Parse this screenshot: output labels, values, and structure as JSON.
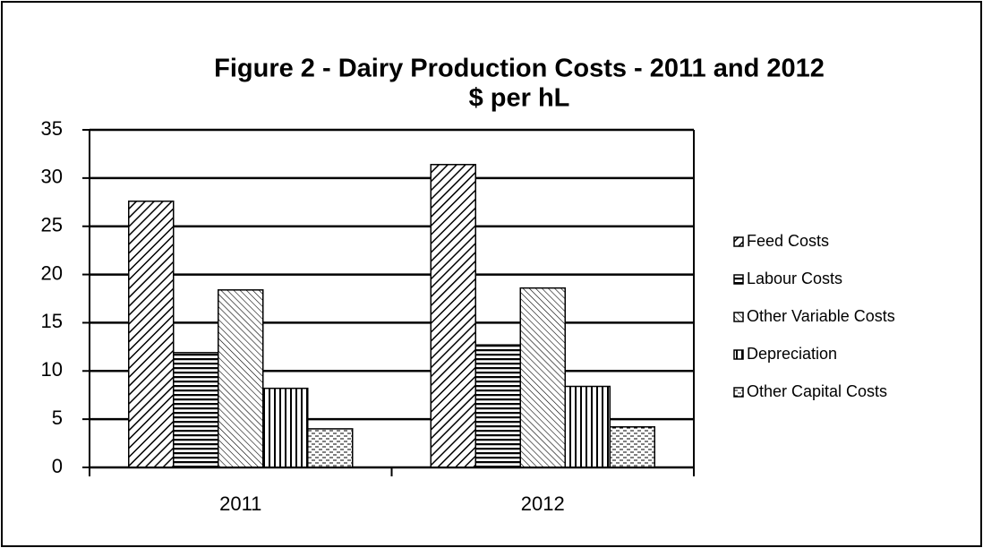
{
  "chart_data": {
    "type": "bar",
    "title": "Figure 2 - Dairy Production Costs - 2011 and 2012",
    "subtitle": "$ per hL",
    "categories": [
      "2011",
      "2012"
    ],
    "series": [
      {
        "name": "Feed Costs",
        "color": "#000000",
        "values": [
          27.6,
          31.4
        ]
      },
      {
        "name": "Labour Costs",
        "color": "#000000",
        "values": [
          11.9,
          12.7
        ]
      },
      {
        "name": "Other Variable Costs",
        "color": "#000000",
        "values": [
          18.4,
          18.6
        ]
      },
      {
        "name": "Depreciation",
        "color": "#000000",
        "values": [
          8.2,
          8.4
        ]
      },
      {
        "name": "Other Capital Costs",
        "color": "#000000",
        "values": [
          4.0,
          4.2
        ]
      }
    ],
    "ylim": [
      0,
      35
    ],
    "yticks": [
      0,
      5,
      10,
      15,
      20,
      25,
      30,
      35
    ],
    "grid": true,
    "legend": "right"
  }
}
